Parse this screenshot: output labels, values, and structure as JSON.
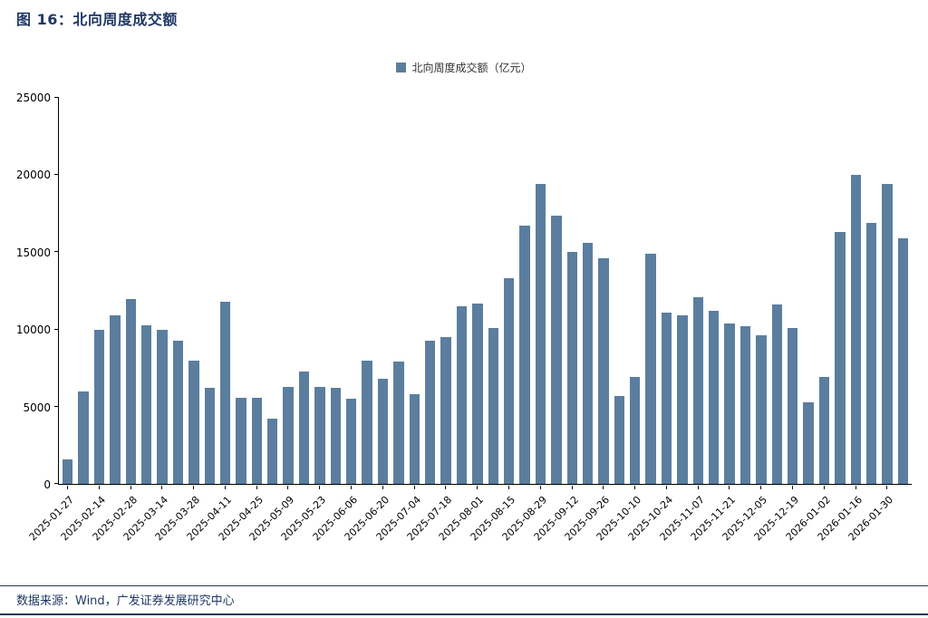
{
  "page": {
    "title": "图 16：北向周度成交额",
    "footer": "数据来源：Wind，广发证券发展研究中心"
  },
  "chart_data": {
    "type": "bar",
    "title": "图 16：北向周度成交额",
    "legend_label": "北向周度成交额（亿元）",
    "legend_position": "top-center",
    "bar_color": "#5B7E9F",
    "accent_color": "#1F3864",
    "grid": false,
    "xlabel": "",
    "ylabel": "",
    "ylim": [
      0,
      25000
    ],
    "yticks": [
      0,
      5000,
      10000,
      15000,
      20000,
      25000
    ],
    "label_every": 2,
    "x_tick_labels": [
      "2025-01-27",
      "2025-02-14",
      "2025-02-28",
      "2025-03-14",
      "2025-03-28",
      "2025-04-11",
      "2025-04-25",
      "2025-05-09",
      "2025-05-23",
      "2025-06-06",
      "2025-06-20",
      "2025-07-04",
      "2025-07-18",
      "2025-08-01",
      "2025-08-15",
      "2025-08-29",
      "2025-09-12",
      "2025-09-26",
      "2025-10-10",
      "2025-10-24",
      "2025-11-07",
      "2025-11-21",
      "2025-12-05",
      "2025-12-19",
      "2026-01-02",
      "2026-01-16",
      "2026-01-30"
    ],
    "values": [
      1600,
      6000,
      10000,
      10900,
      12000,
      10300,
      10000,
      9300,
      8000,
      6200,
      11800,
      5600,
      5600,
      4200,
      6300,
      7300,
      6300,
      6200,
      5500,
      8000,
      6800,
      7900,
      5800,
      9300,
      9500,
      11500,
      11700,
      10100,
      13300,
      16700,
      19400,
      17400,
      15000,
      15600,
      14600,
      5700,
      6900,
      14900,
      11100,
      10900,
      12100,
      11200,
      10400,
      10200,
      9600,
      11600,
      10100,
      5300,
      6900,
      16300,
      20000,
      16900,
      19400,
      15900
    ],
    "source_note": "数据来源：Wind，广发证券发展研究中心"
  }
}
